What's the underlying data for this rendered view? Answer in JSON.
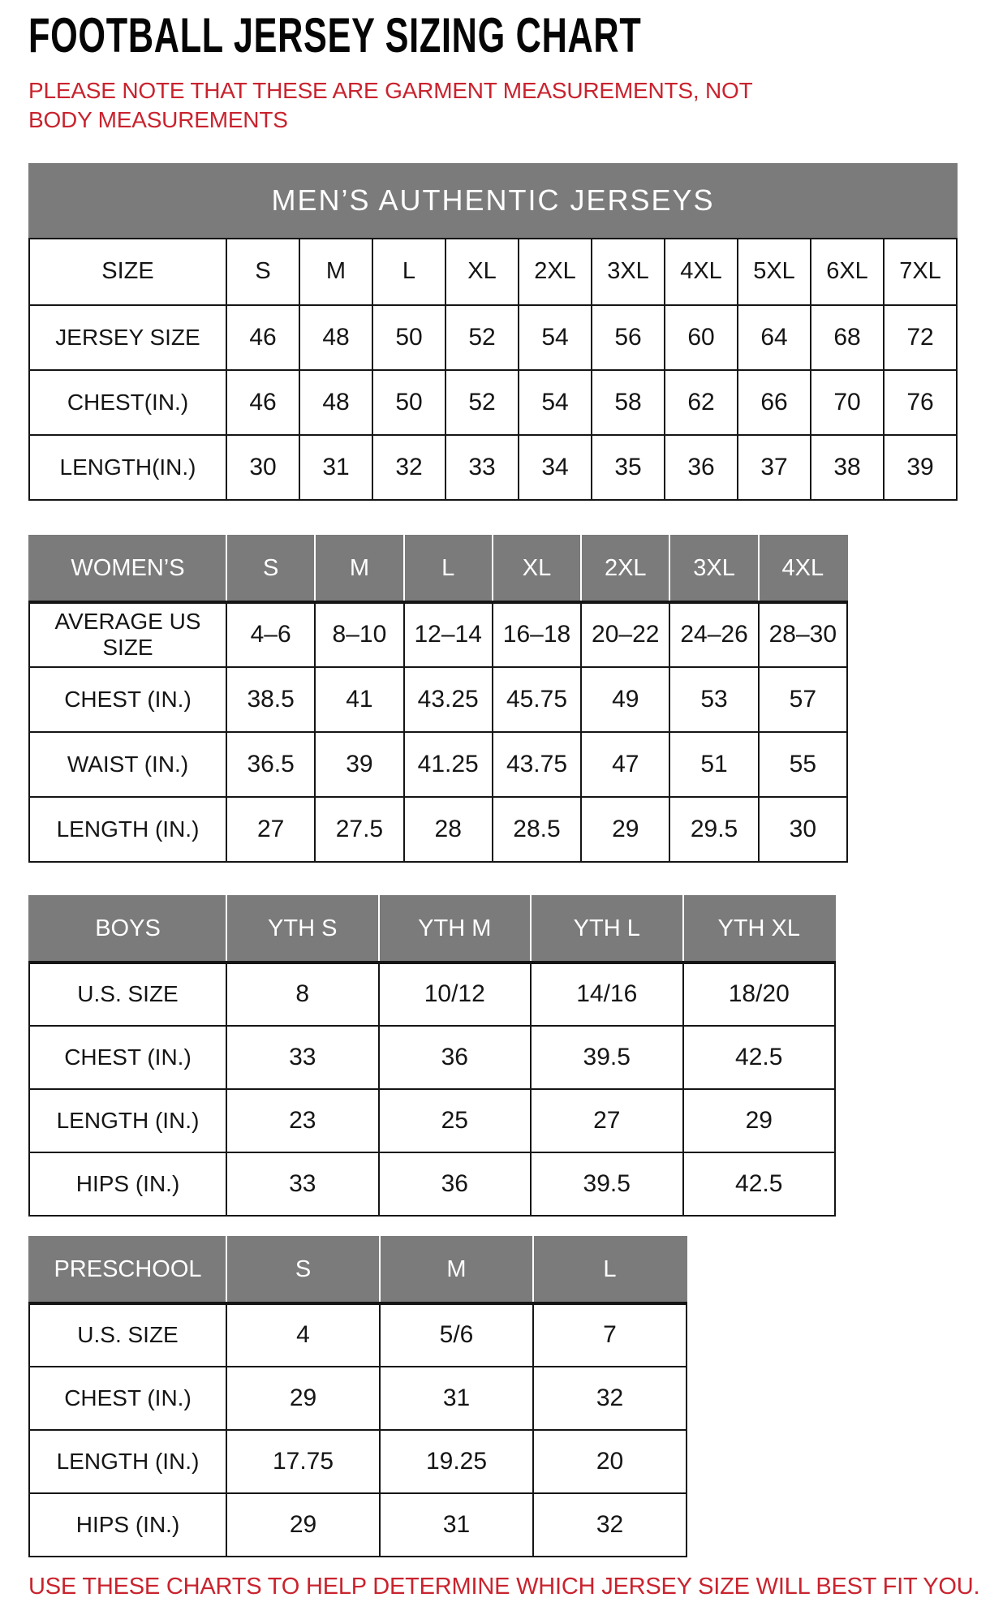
{
  "page": {
    "title": "FOOTBALL JERSEY SIZING CHART",
    "note": "PLEASE NOTE THAT THESE ARE GARMENT MEASUREMENTS, NOT BODY MEASUREMENTS",
    "footer": "USE THESE CHARTS TO HELP DETERMINE WHICH JERSEY SIZE WILL BEST FIT YOU.",
    "colors": {
      "accent_red": "#c9232e",
      "header_gray": "#7b7b7b"
    }
  },
  "tables": {
    "mens": {
      "banner": "MEN’S AUTHENTIC JERSEYS",
      "columns": [
        "SIZE",
        "S",
        "M",
        "L",
        "XL",
        "2XL",
        "3XL",
        "4XL",
        "5XL",
        "6XL",
        "7XL"
      ],
      "rows": [
        {
          "label": "JERSEY SIZE",
          "values": [
            "46",
            "48",
            "50",
            "52",
            "54",
            "56",
            "60",
            "64",
            "68",
            "72"
          ]
        },
        {
          "label": "CHEST(IN.)",
          "values": [
            "46",
            "48",
            "50",
            "52",
            "54",
            "58",
            "62",
            "66",
            "70",
            "76"
          ]
        },
        {
          "label": "LENGTH(IN.)",
          "values": [
            "30",
            "31",
            "32",
            "33",
            "34",
            "35",
            "36",
            "37",
            "38",
            "39"
          ]
        }
      ]
    },
    "womens": {
      "columns": [
        "WOMEN’S",
        "S",
        "M",
        "L",
        "XL",
        "2XL",
        "3XL",
        "4XL"
      ],
      "rows": [
        {
          "label": "AVERAGE US SIZE",
          "values": [
            "4–6",
            "8–10",
            "12–14",
            "16–18",
            "20–22",
            "24–26",
            "28–30"
          ]
        },
        {
          "label": "CHEST (IN.)",
          "values": [
            "38.5",
            "41",
            "43.25",
            "45.75",
            "49",
            "53",
            "57"
          ]
        },
        {
          "label": "WAIST (IN.)",
          "values": [
            "36.5",
            "39",
            "41.25",
            "43.75",
            "47",
            "51",
            "55"
          ]
        },
        {
          "label": "LENGTH (IN.)",
          "values": [
            "27",
            "27.5",
            "28",
            "28.5",
            "29",
            "29.5",
            "30"
          ]
        }
      ]
    },
    "boys": {
      "columns": [
        "BOYS",
        "YTH S",
        "YTH M",
        "YTH L",
        "YTH XL"
      ],
      "rows": [
        {
          "label": "U.S. SIZE",
          "values": [
            "8",
            "10/12",
            "14/16",
            "18/20"
          ]
        },
        {
          "label": "CHEST (IN.)",
          "values": [
            "33",
            "36",
            "39.5",
            "42.5"
          ]
        },
        {
          "label": "LENGTH (IN.)",
          "values": [
            "23",
            "25",
            "27",
            "29"
          ]
        },
        {
          "label": "HIPS (IN.)",
          "values": [
            "33",
            "36",
            "39.5",
            "42.5"
          ]
        }
      ]
    },
    "preschool": {
      "columns": [
        "PRESCHOOL",
        "S",
        "M",
        "L"
      ],
      "rows": [
        {
          "label": "U.S. SIZE",
          "values": [
            "4",
            "5/6",
            "7"
          ]
        },
        {
          "label": "CHEST (IN.)",
          "values": [
            "29",
            "31",
            "32"
          ]
        },
        {
          "label": "LENGTH (IN.)",
          "values": [
            "17.75",
            "19.25",
            "20"
          ]
        },
        {
          "label": "HIPS (IN.)",
          "values": [
            "29",
            "31",
            "32"
          ]
        }
      ]
    }
  }
}
